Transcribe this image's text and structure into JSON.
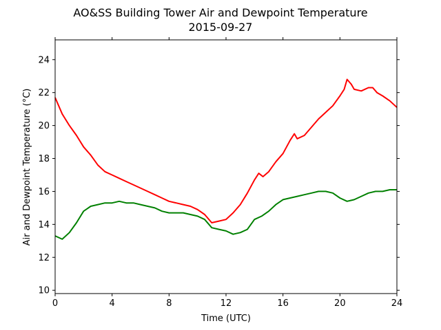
{
  "chart_data": {
    "type": "line",
    "title": "AO&SS Building Tower Air and Dewpoint Temperature",
    "subtitle": "2015-09-27",
    "xlabel": "Time (UTC)",
    "ylabel": "Air and Dewpoint Temperature (°C)",
    "xlim": [
      0,
      24
    ],
    "ylim": [
      9.8,
      25.2
    ],
    "xticks": [
      0,
      4,
      8,
      12,
      16,
      20,
      24
    ],
    "yticks": [
      10,
      12,
      14,
      16,
      18,
      20,
      22,
      24
    ],
    "grid": false,
    "series": [
      {
        "color": "#ff0000",
        "x": [
          0,
          0.5,
          1,
          1.5,
          2,
          2.5,
          3,
          3.5,
          4,
          4.5,
          5,
          5.5,
          6,
          6.5,
          7,
          7.5,
          8,
          8.5,
          9,
          9.5,
          10,
          10.5,
          11,
          11.5,
          12,
          12.5,
          13,
          13.5,
          14,
          14.3,
          14.6,
          15,
          15.5,
          16,
          16.5,
          16.8,
          17,
          17.5,
          18,
          18.5,
          19,
          19.5,
          20,
          20.3,
          20.5,
          20.8,
          21,
          21.5,
          22,
          22.3,
          22.6,
          23,
          23.5,
          24
        ],
        "y": [
          21.7,
          20.7,
          20.0,
          19.4,
          18.7,
          18.2,
          17.6,
          17.2,
          17.0,
          16.8,
          16.6,
          16.4,
          16.2,
          16.0,
          15.8,
          15.6,
          15.4,
          15.3,
          15.2,
          15.1,
          14.9,
          14.6,
          14.1,
          14.2,
          14.3,
          14.7,
          15.2,
          15.9,
          16.7,
          17.1,
          16.9,
          17.2,
          17.8,
          18.3,
          19.1,
          19.5,
          19.2,
          19.4,
          19.9,
          20.4,
          20.8,
          21.2,
          21.8,
          22.2,
          22.8,
          22.5,
          22.2,
          22.1,
          22.3,
          22.3,
          22.0,
          21.8,
          21.5,
          21.1
        ]
      },
      {
        "color": "#008000",
        "x": [
          0,
          0.5,
          1,
          1.5,
          2,
          2.5,
          3,
          3.5,
          4,
          4.5,
          5,
          5.5,
          6,
          6.5,
          7,
          7.5,
          8,
          8.5,
          9,
          9.5,
          10,
          10.5,
          11,
          11.5,
          12,
          12.5,
          13,
          13.5,
          14,
          14.5,
          15,
          15.5,
          16,
          16.5,
          17,
          17.5,
          18,
          18.5,
          19,
          19.5,
          20,
          20.5,
          21,
          21.5,
          22,
          22.5,
          23,
          23.5,
          24
        ],
        "y": [
          13.3,
          13.1,
          13.5,
          14.1,
          14.8,
          15.1,
          15.2,
          15.3,
          15.3,
          15.4,
          15.3,
          15.3,
          15.2,
          15.1,
          15.0,
          14.8,
          14.7,
          14.7,
          14.7,
          14.6,
          14.5,
          14.3,
          13.8,
          13.7,
          13.6,
          13.4,
          13.5,
          13.7,
          14.3,
          14.5,
          14.8,
          15.2,
          15.5,
          15.6,
          15.7,
          15.8,
          15.9,
          16.0,
          16.0,
          15.9,
          15.6,
          15.4,
          15.5,
          15.7,
          15.9,
          16.0,
          16.0,
          16.1,
          16.1
        ]
      }
    ]
  }
}
